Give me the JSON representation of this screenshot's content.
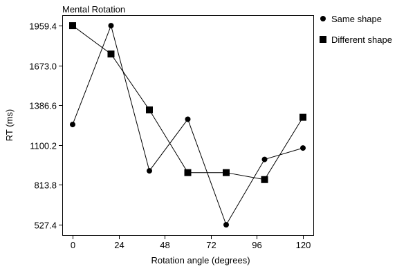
{
  "chart_data": {
    "type": "line",
    "title": "Mental Rotation",
    "xlabel": "Rotation angle (degrees)",
    "ylabel": "RT (ms)",
    "x": [
      0,
      20,
      40,
      60,
      80,
      100,
      120
    ],
    "xticks": [
      "0",
      "24",
      "48",
      "72",
      "96",
      "120"
    ],
    "xtick_values": [
      0,
      24,
      48,
      72,
      96,
      120
    ],
    "yticks": [
      "527.4",
      "813.8",
      "1100.2",
      "1386.6",
      "1673.0",
      "1959.4"
    ],
    "ytick_values": [
      527.4,
      813.8,
      1100.2,
      1386.6,
      1673.0,
      1959.4
    ],
    "xlim": [
      -5.4,
      125.4
    ],
    "ylim": [
      453,
      2034
    ],
    "grid": false,
    "legend_position": "outside-right-top",
    "series": [
      {
        "name": "Same shape",
        "marker": "circle",
        "color": "#000000",
        "values": [
          1248,
          1959,
          915,
          1286,
          527,
          997,
          1079
        ]
      },
      {
        "name": "Different shape",
        "marker": "square",
        "color": "#000000",
        "values": [
          1959,
          1755,
          1353,
          902,
          902,
          852,
          1300
        ]
      }
    ]
  }
}
